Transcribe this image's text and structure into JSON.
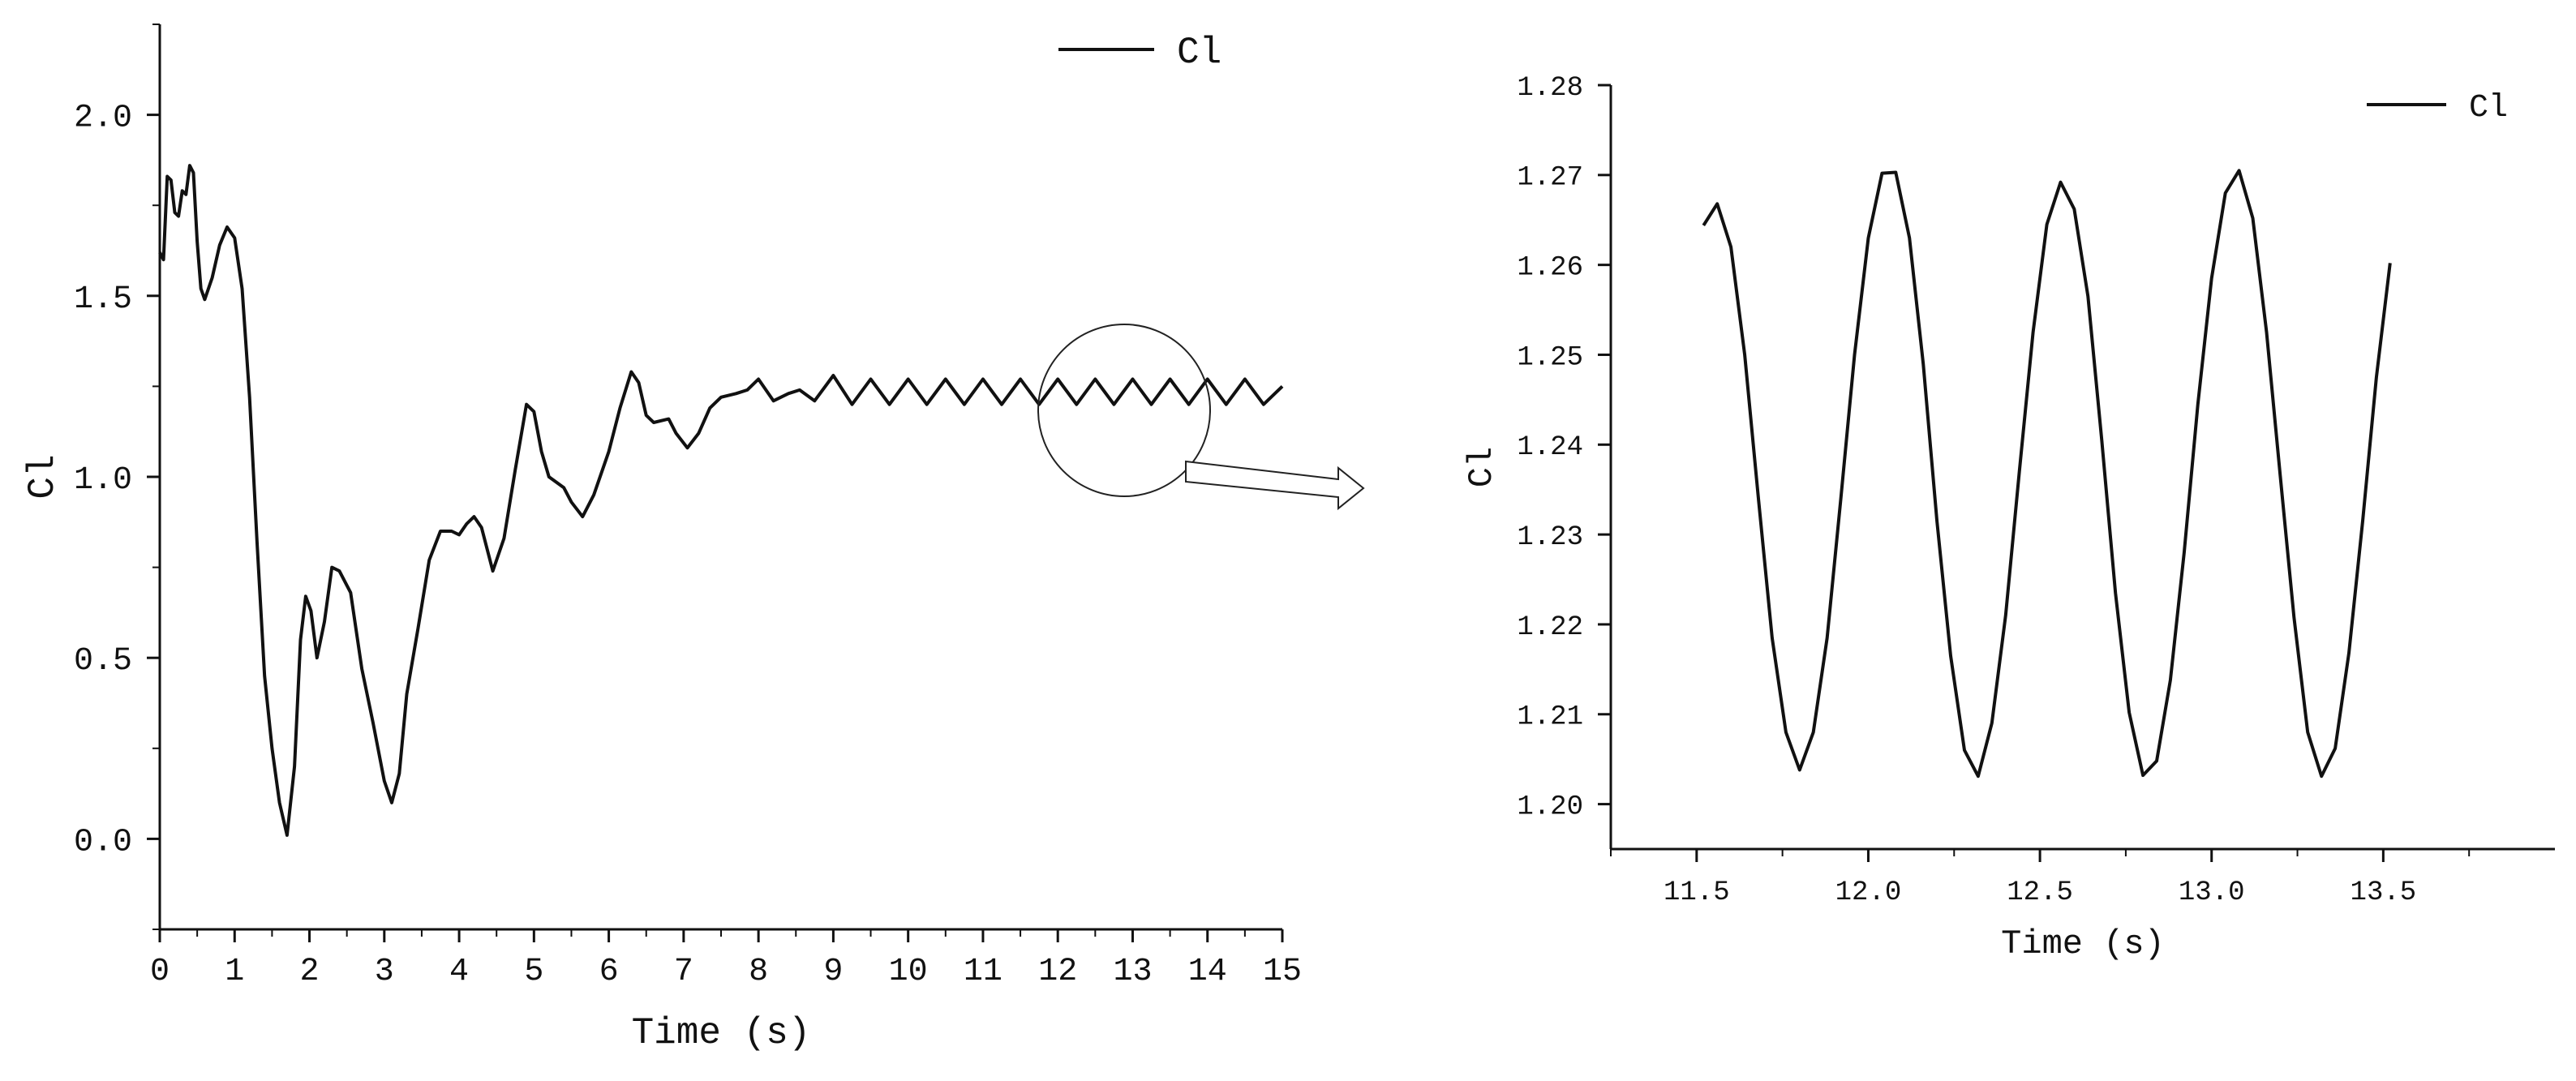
{
  "chart_data": [
    {
      "type": "line",
      "title": "",
      "xlabel": "Time (s)",
      "ylabel": "Cl",
      "xlim": [
        0,
        15
      ],
      "ylim": [
        -0.25,
        2.25
      ],
      "x_ticks": [
        0,
        1,
        2,
        3,
        4,
        5,
        6,
        7,
        8,
        9,
        10,
        11,
        12,
        13,
        14,
        15
      ],
      "x_tick_labels": [
        "0",
        "1",
        "2",
        "3",
        "4",
        "5",
        "6",
        "7",
        "8",
        "9",
        "10",
        "11",
        "12",
        "13",
        "14",
        "15"
      ],
      "y_ticks": [
        0.0,
        0.5,
        1.0,
        1.5,
        2.0
      ],
      "y_tick_labels": [
        "0.0",
        "0.5",
        "1.0",
        "1.5",
        "2.0"
      ],
      "legend": "top-right",
      "grid": false,
      "series": [
        {
          "name": "Cl",
          "points": [
            [
              0.0,
              1.62
            ],
            [
              0.05,
              1.6
            ],
            [
              0.1,
              1.83
            ],
            [
              0.15,
              1.82
            ],
            [
              0.2,
              1.73
            ],
            [
              0.25,
              1.72
            ],
            [
              0.3,
              1.79
            ],
            [
              0.35,
              1.78
            ],
            [
              0.4,
              1.86
            ],
            [
              0.45,
              1.84
            ],
            [
              0.5,
              1.65
            ],
            [
              0.55,
              1.52
            ],
            [
              0.6,
              1.49
            ],
            [
              0.7,
              1.55
            ],
            [
              0.8,
              1.64
            ],
            [
              0.9,
              1.69
            ],
            [
              1.0,
              1.66
            ],
            [
              1.1,
              1.52
            ],
            [
              1.2,
              1.22
            ],
            [
              1.3,
              0.82
            ],
            [
              1.4,
              0.45
            ],
            [
              1.5,
              0.25
            ],
            [
              1.6,
              0.1
            ],
            [
              1.7,
              0.01
            ],
            [
              1.8,
              0.2
            ],
            [
              1.88,
              0.55
            ],
            [
              1.95,
              0.67
            ],
            [
              2.02,
              0.63
            ],
            [
              2.1,
              0.5
            ],
            [
              2.2,
              0.6
            ],
            [
              2.3,
              0.75
            ],
            [
              2.4,
              0.74
            ],
            [
              2.55,
              0.68
            ],
            [
              2.7,
              0.47
            ],
            [
              2.85,
              0.32
            ],
            [
              3.0,
              0.16
            ],
            [
              3.1,
              0.1
            ],
            [
              3.2,
              0.18
            ],
            [
              3.3,
              0.4
            ],
            [
              3.45,
              0.58
            ],
            [
              3.6,
              0.77
            ],
            [
              3.75,
              0.85
            ],
            [
              3.9,
              0.85
            ],
            [
              4.0,
              0.84
            ],
            [
              4.1,
              0.87
            ],
            [
              4.2,
              0.89
            ],
            [
              4.3,
              0.86
            ],
            [
              4.45,
              0.74
            ],
            [
              4.6,
              0.83
            ],
            [
              4.75,
              1.02
            ],
            [
              4.9,
              1.2
            ],
            [
              5.0,
              1.18
            ],
            [
              5.1,
              1.07
            ],
            [
              5.2,
              1.0
            ],
            [
              5.4,
              0.97
            ],
            [
              5.5,
              0.93
            ],
            [
              5.65,
              0.89
            ],
            [
              5.8,
              0.95
            ],
            [
              6.0,
              1.07
            ],
            [
              6.15,
              1.19
            ],
            [
              6.3,
              1.29
            ],
            [
              6.4,
              1.26
            ],
            [
              6.5,
              1.17
            ],
            [
              6.6,
              1.15
            ],
            [
              6.8,
              1.16
            ],
            [
              6.9,
              1.12
            ],
            [
              7.05,
              1.08
            ],
            [
              7.2,
              1.12
            ],
            [
              7.35,
              1.19
            ],
            [
              7.5,
              1.22
            ],
            [
              7.7,
              1.23
            ],
            [
              7.85,
              1.24
            ],
            [
              8.0,
              1.27
            ],
            [
              8.2,
              1.21
            ],
            [
              8.4,
              1.23
            ],
            [
              8.55,
              1.24
            ],
            [
              8.75,
              1.21
            ],
            [
              9.0,
              1.28
            ],
            [
              9.25,
              1.2
            ],
            [
              9.5,
              1.27
            ],
            [
              9.75,
              1.2
            ],
            [
              10.0,
              1.27
            ],
            [
              10.25,
              1.2
            ],
            [
              10.5,
              1.27
            ],
            [
              10.75,
              1.2
            ],
            [
              11.0,
              1.27
            ],
            [
              11.25,
              1.2
            ],
            [
              11.5,
              1.27
            ],
            [
              11.75,
              1.2
            ],
            [
              12.0,
              1.27
            ],
            [
              12.25,
              1.2
            ],
            [
              12.5,
              1.27
            ],
            [
              12.75,
              1.2
            ],
            [
              13.0,
              1.27
            ],
            [
              13.25,
              1.2
            ],
            [
              13.5,
              1.27
            ],
            [
              13.75,
              1.2
            ],
            [
              14.0,
              1.27
            ],
            [
              14.25,
              1.2
            ],
            [
              14.5,
              1.27
            ],
            [
              14.75,
              1.2
            ],
            [
              15.0,
              1.25
            ]
          ]
        }
      ]
    },
    {
      "type": "line",
      "title": "",
      "xlabel": "Time (s)",
      "ylabel": "Cl",
      "xlim": [
        11.25,
        14.0
      ],
      "ylim": [
        1.195,
        1.28
      ],
      "x_ticks": [
        11.5,
        12.0,
        12.5,
        13.0,
        13.5
      ],
      "x_tick_labels": [
        "11.5",
        "12.0",
        "12.5",
        "13.0",
        "13.5"
      ],
      "y_ticks": [
        1.2,
        1.21,
        1.22,
        1.23,
        1.24,
        1.25,
        1.26,
        1.27,
        1.28
      ],
      "y_tick_labels": [
        "1.20",
        "1.21",
        "1.22",
        "1.23",
        "1.24",
        "1.25",
        "1.26",
        "1.27",
        "1.28"
      ],
      "legend": "top-right",
      "grid": false,
      "series": [
        {
          "name": "Cl",
          "points": [
            [
              11.52,
              1.2644
            ],
            [
              11.56,
              1.2668
            ],
            [
              11.6,
              1.262
            ],
            [
              11.64,
              1.25
            ],
            [
              11.68,
              1.234
            ],
            [
              11.72,
              1.2185
            ],
            [
              11.76,
              1.208
            ],
            [
              11.8,
              1.2038
            ],
            [
              11.84,
              1.208
            ],
            [
              11.88,
              1.2185
            ],
            [
              11.92,
              1.234
            ],
            [
              11.96,
              1.25
            ],
            [
              12.0,
              1.263
            ],
            [
              12.04,
              1.2702
            ],
            [
              12.08,
              1.2703
            ],
            [
              12.12,
              1.263
            ],
            [
              12.16,
              1.249
            ],
            [
              12.2,
              1.2315
            ],
            [
              12.24,
              1.2165
            ],
            [
              12.28,
              1.206
            ],
            [
              12.32,
              1.2031
            ],
            [
              12.36,
              1.209
            ],
            [
              12.4,
              1.221
            ],
            [
              12.44,
              1.237
            ],
            [
              12.48,
              1.2525
            ],
            [
              12.52,
              1.2645
            ],
            [
              12.56,
              1.2692
            ],
            [
              12.6,
              1.2662
            ],
            [
              12.64,
              1.2565
            ],
            [
              12.68,
              1.2405
            ],
            [
              12.72,
              1.2235
            ],
            [
              12.76,
              1.2102
            ],
            [
              12.8,
              1.2032
            ],
            [
              12.84,
              1.2048
            ],
            [
              12.88,
              1.2138
            ],
            [
              12.92,
              1.228
            ],
            [
              12.96,
              1.2445
            ],
            [
              13.0,
              1.2585
            ],
            [
              13.04,
              1.268
            ],
            [
              13.08,
              1.2705
            ],
            [
              13.12,
              1.2652
            ],
            [
              13.16,
              1.2525
            ],
            [
              13.2,
              1.2365
            ],
            [
              13.24,
              1.2208
            ],
            [
              13.28,
              1.208
            ],
            [
              13.32,
              1.2031
            ],
            [
              13.36,
              1.2062
            ],
            [
              13.4,
              1.2168
            ],
            [
              13.44,
              1.2315
            ],
            [
              13.48,
              1.2475
            ],
            [
              13.52,
              1.2602
            ]
          ]
        }
      ]
    }
  ]
}
